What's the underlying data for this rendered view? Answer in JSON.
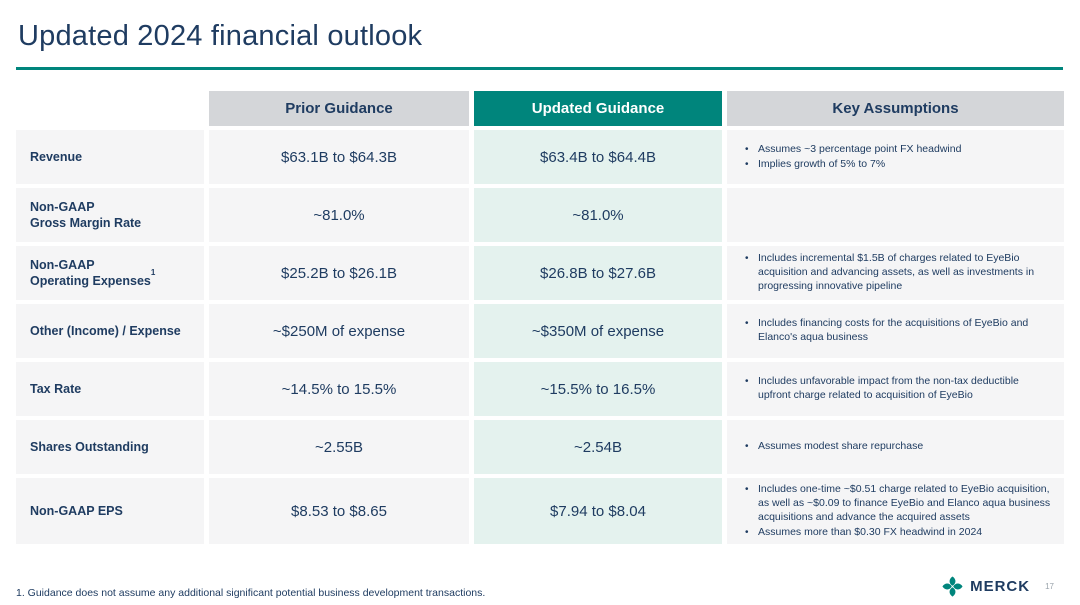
{
  "title": "Updated 2024 financial outlook",
  "table": {
    "column_headers": {
      "prior": "Prior Guidance",
      "updated": "Updated Guidance",
      "assumptions": "Key Assumptions"
    },
    "rows": [
      {
        "label": "Revenue",
        "label_sup": "",
        "prior": "$63.1B to $64.3B",
        "updated": "$63.4B to $64.4B",
        "assumptions": [
          "Assumes ~3 percentage point FX headwind",
          "Implies growth of 5% to 7%"
        ]
      },
      {
        "label": "Non-GAAP\nGross Margin Rate",
        "label_sup": "",
        "prior": "~81.0%",
        "updated": "~81.0%",
        "assumptions": []
      },
      {
        "label": "Non-GAAP\nOperating Expenses",
        "label_sup": "1",
        "prior": "$25.2B to $26.1B",
        "updated": "$26.8B to $27.6B",
        "assumptions": [
          "Includes incremental $1.5B of charges related to EyeBio acquisition and advancing assets, as well as investments in progressing innovative pipeline"
        ]
      },
      {
        "label": "Other (Income) / Expense",
        "label_sup": "",
        "prior": "~$250M of expense",
        "updated": "~$350M of expense",
        "assumptions": [
          "Includes financing costs for the acquisitions of EyeBio and Elanco's aqua business"
        ]
      },
      {
        "label": "Tax Rate",
        "label_sup": "",
        "prior": "~14.5% to 15.5%",
        "updated": "~15.5% to 16.5%",
        "assumptions": [
          "Includes unfavorable impact from the non-tax deductible upfront charge related to acquisition of EyeBio"
        ]
      },
      {
        "label": "Shares Outstanding",
        "label_sup": "",
        "prior": "~2.55B",
        "updated": "~2.54B",
        "assumptions": [
          "Assumes modest share repurchase"
        ]
      },
      {
        "label": "Non-GAAP EPS",
        "label_sup": "",
        "prior": "$8.53 to $8.65",
        "updated": "$7.94 to $8.04",
        "assumptions": [
          "Includes one-time ~$0.51 charge related to EyeBio acquisition, as well as ~$0.09 to finance EyeBio and Elanco aqua business acquisitions and advance the acquired assets",
          "Assumes more than $0.30 FX headwind in 2024"
        ]
      }
    ]
  },
  "footnote": "1. Guidance does not assume any additional significant potential business development transactions.",
  "footer": {
    "brand": "MERCK",
    "page_number": "17"
  },
  "colors": {
    "accent_teal": "#00857C",
    "light_teal": "#E4F2EE",
    "header_gray": "#D4D6D9",
    "cell_gray": "#F5F5F6",
    "navy": "#1F3C61"
  }
}
